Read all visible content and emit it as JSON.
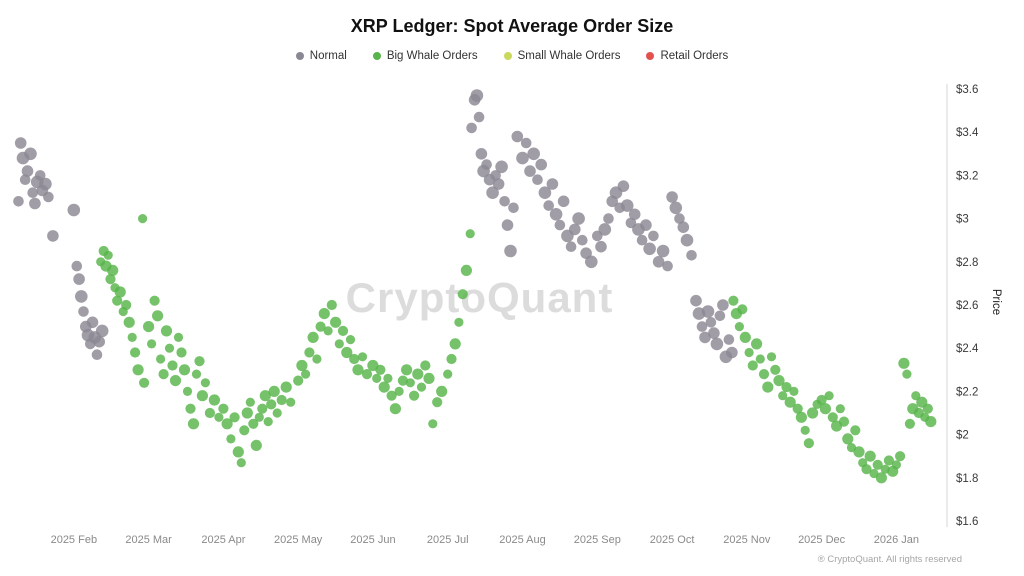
{
  "header": {
    "title": "XRP Ledger: Spot Average Order Size"
  },
  "legend": {
    "items": [
      {
        "label": "Normal",
        "color": "#8b8894"
      },
      {
        "label": "Big Whale Orders",
        "color": "#58b44b"
      },
      {
        "label": "Small Whale Orders",
        "color": "#c9d95b"
      },
      {
        "label": "Retail Orders",
        "color": "#e2514d"
      }
    ]
  },
  "watermark": "CryptoQuant",
  "footer": "® CryptoQuant. All rights reserved",
  "chart_data": {
    "type": "scatter",
    "title": "XRP Ledger: Spot Average Order Size",
    "xlabel": "",
    "ylabel": "Price",
    "ylim": [
      1.6,
      3.6
    ],
    "xlim": [
      0.2,
      12.65
    ],
    "grid": false,
    "legend_position": "top",
    "yticks": [
      {
        "value": 3.6,
        "label": "$3.6"
      },
      {
        "value": 3.4,
        "label": "$3.4"
      },
      {
        "value": 3.2,
        "label": "$3.2"
      },
      {
        "value": 3.0,
        "label": "$3"
      },
      {
        "value": 2.8,
        "label": "$2.8"
      },
      {
        "value": 2.6,
        "label": "$2.6"
      },
      {
        "value": 2.4,
        "label": "$2.4"
      },
      {
        "value": 2.2,
        "label": "$2.2"
      },
      {
        "value": 2.0,
        "label": "$2"
      },
      {
        "value": 1.8,
        "label": "$1.8"
      },
      {
        "value": 1.6,
        "label": "$1.6"
      }
    ],
    "xticks": [
      {
        "value": 1,
        "label": "2025 Feb"
      },
      {
        "value": 2,
        "label": "2025 Mar"
      },
      {
        "value": 3,
        "label": "2025 Apr"
      },
      {
        "value": 4,
        "label": "2025 May"
      },
      {
        "value": 5,
        "label": "2025 Jun"
      },
      {
        "value": 6,
        "label": "2025 Jul"
      },
      {
        "value": 7,
        "label": "2025 Aug"
      },
      {
        "value": 8,
        "label": "2025 Sep"
      },
      {
        "value": 9,
        "label": "2025 Oct"
      },
      {
        "value": 10,
        "label": "2025 Nov"
      },
      {
        "value": 11,
        "label": "2025 Dec"
      },
      {
        "value": 12,
        "label": "2026 Jan"
      }
    ],
    "series": [
      {
        "name": "Normal",
        "color": "#8b8894",
        "points": [
          [
            0.26,
            3.08
          ],
          [
            0.29,
            3.35
          ],
          [
            0.32,
            3.28
          ],
          [
            0.35,
            3.18
          ],
          [
            0.38,
            3.22
          ],
          [
            0.42,
            3.3
          ],
          [
            0.45,
            3.12
          ],
          [
            0.48,
            3.07
          ],
          [
            0.51,
            3.17
          ],
          [
            0.55,
            3.2
          ],
          [
            0.58,
            3.13
          ],
          [
            0.62,
            3.16
          ],
          [
            0.66,
            3.1
          ],
          [
            0.72,
            2.92
          ],
          [
            1.0,
            3.04
          ],
          [
            1.04,
            2.78
          ],
          [
            1.07,
            2.72
          ],
          [
            1.1,
            2.64
          ],
          [
            1.13,
            2.57
          ],
          [
            1.16,
            2.5
          ],
          [
            1.19,
            2.46
          ],
          [
            1.22,
            2.42
          ],
          [
            1.25,
            2.52
          ],
          [
            1.28,
            2.45
          ],
          [
            1.31,
            2.37
          ],
          [
            1.34,
            2.43
          ],
          [
            1.38,
            2.48
          ],
          [
            6.32,
            3.42
          ],
          [
            6.36,
            3.55
          ],
          [
            6.39,
            3.57
          ],
          [
            6.42,
            3.47
          ],
          [
            6.45,
            3.3
          ],
          [
            6.48,
            3.22
          ],
          [
            6.52,
            3.25
          ],
          [
            6.56,
            3.18
          ],
          [
            6.6,
            3.12
          ],
          [
            6.64,
            3.2
          ],
          [
            6.68,
            3.16
          ],
          [
            6.72,
            3.24
          ],
          [
            6.76,
            3.08
          ],
          [
            6.8,
            2.97
          ],
          [
            6.84,
            2.85
          ],
          [
            6.88,
            3.05
          ],
          [
            6.93,
            3.38
          ],
          [
            7.0,
            3.28
          ],
          [
            7.05,
            3.35
          ],
          [
            7.1,
            3.22
          ],
          [
            7.15,
            3.3
          ],
          [
            7.2,
            3.18
          ],
          [
            7.25,
            3.25
          ],
          [
            7.3,
            3.12
          ],
          [
            7.35,
            3.06
          ],
          [
            7.4,
            3.16
          ],
          [
            7.45,
            3.02
          ],
          [
            7.5,
            2.97
          ],
          [
            7.55,
            3.08
          ],
          [
            7.6,
            2.92
          ],
          [
            7.65,
            2.87
          ],
          [
            7.7,
            2.95
          ],
          [
            7.75,
            3.0
          ],
          [
            7.8,
            2.9
          ],
          [
            7.85,
            2.84
          ],
          [
            7.92,
            2.8
          ],
          [
            8.0,
            2.92
          ],
          [
            8.05,
            2.87
          ],
          [
            8.1,
            2.95
          ],
          [
            8.15,
            3.0
          ],
          [
            8.2,
            3.08
          ],
          [
            8.25,
            3.12
          ],
          [
            8.3,
            3.05
          ],
          [
            8.35,
            3.15
          ],
          [
            8.4,
            3.06
          ],
          [
            8.45,
            2.98
          ],
          [
            8.5,
            3.02
          ],
          [
            8.55,
            2.95
          ],
          [
            8.6,
            2.9
          ],
          [
            8.65,
            2.97
          ],
          [
            8.7,
            2.86
          ],
          [
            8.75,
            2.92
          ],
          [
            8.82,
            2.8
          ],
          [
            8.88,
            2.85
          ],
          [
            8.94,
            2.78
          ],
          [
            9.0,
            3.1
          ],
          [
            9.05,
            3.05
          ],
          [
            9.1,
            3.0
          ],
          [
            9.15,
            2.96
          ],
          [
            9.2,
            2.9
          ],
          [
            9.26,
            2.83
          ],
          [
            9.32,
            2.62
          ],
          [
            9.36,
            2.56
          ],
          [
            9.4,
            2.5
          ],
          [
            9.44,
            2.45
          ],
          [
            9.48,
            2.57
          ],
          [
            9.52,
            2.52
          ],
          [
            9.56,
            2.47
          ],
          [
            9.6,
            2.42
          ],
          [
            9.64,
            2.55
          ],
          [
            9.68,
            2.6
          ],
          [
            9.72,
            2.36
          ],
          [
            9.76,
            2.44
          ],
          [
            9.8,
            2.38
          ]
        ]
      },
      {
        "name": "Big Whale Orders",
        "color": "#58b44b",
        "points": [
          [
            1.36,
            2.8
          ],
          [
            1.4,
            2.85
          ],
          [
            1.43,
            2.78
          ],
          [
            1.46,
            2.83
          ],
          [
            1.49,
            2.72
          ],
          [
            1.52,
            2.76
          ],
          [
            1.55,
            2.68
          ],
          [
            1.58,
            2.62
          ],
          [
            1.62,
            2.66
          ],
          [
            1.66,
            2.57
          ],
          [
            1.7,
            2.6
          ],
          [
            1.74,
            2.52
          ],
          [
            1.78,
            2.45
          ],
          [
            1.82,
            2.38
          ],
          [
            1.86,
            2.3
          ],
          [
            1.92,
            3.0
          ],
          [
            1.94,
            2.24
          ],
          [
            2.0,
            2.5
          ],
          [
            2.04,
            2.42
          ],
          [
            2.08,
            2.62
          ],
          [
            2.12,
            2.55
          ],
          [
            2.16,
            2.35
          ],
          [
            2.2,
            2.28
          ],
          [
            2.24,
            2.48
          ],
          [
            2.28,
            2.4
          ],
          [
            2.32,
            2.32
          ],
          [
            2.36,
            2.25
          ],
          [
            2.4,
            2.45
          ],
          [
            2.44,
            2.38
          ],
          [
            2.48,
            2.3
          ],
          [
            2.52,
            2.2
          ],
          [
            2.56,
            2.12
          ],
          [
            2.6,
            2.05
          ],
          [
            2.64,
            2.28
          ],
          [
            2.68,
            2.34
          ],
          [
            2.72,
            2.18
          ],
          [
            2.76,
            2.24
          ],
          [
            2.82,
            2.1
          ],
          [
            2.88,
            2.16
          ],
          [
            2.94,
            2.08
          ],
          [
            3.0,
            2.12
          ],
          [
            3.05,
            2.05
          ],
          [
            3.1,
            1.98
          ],
          [
            3.15,
            2.08
          ],
          [
            3.2,
            1.92
          ],
          [
            3.24,
            1.87
          ],
          [
            3.28,
            2.02
          ],
          [
            3.32,
            2.1
          ],
          [
            3.36,
            2.15
          ],
          [
            3.4,
            2.05
          ],
          [
            3.44,
            1.95
          ],
          [
            3.48,
            2.08
          ],
          [
            3.52,
            2.12
          ],
          [
            3.56,
            2.18
          ],
          [
            3.6,
            2.06
          ],
          [
            3.64,
            2.14
          ],
          [
            3.68,
            2.2
          ],
          [
            3.72,
            2.1
          ],
          [
            3.78,
            2.16
          ],
          [
            3.84,
            2.22
          ],
          [
            3.9,
            2.15
          ],
          [
            4.0,
            2.25
          ],
          [
            4.05,
            2.32
          ],
          [
            4.1,
            2.28
          ],
          [
            4.15,
            2.38
          ],
          [
            4.2,
            2.45
          ],
          [
            4.25,
            2.35
          ],
          [
            4.3,
            2.5
          ],
          [
            4.35,
            2.56
          ],
          [
            4.4,
            2.48
          ],
          [
            4.45,
            2.6
          ],
          [
            4.5,
            2.52
          ],
          [
            4.55,
            2.42
          ],
          [
            4.6,
            2.48
          ],
          [
            4.65,
            2.38
          ],
          [
            4.7,
            2.44
          ],
          [
            4.75,
            2.35
          ],
          [
            4.8,
            2.3
          ],
          [
            4.86,
            2.36
          ],
          [
            4.92,
            2.28
          ],
          [
            5.0,
            2.32
          ],
          [
            5.05,
            2.26
          ],
          [
            5.1,
            2.3
          ],
          [
            5.15,
            2.22
          ],
          [
            5.2,
            2.26
          ],
          [
            5.25,
            2.18
          ],
          [
            5.3,
            2.12
          ],
          [
            5.35,
            2.2
          ],
          [
            5.4,
            2.25
          ],
          [
            5.45,
            2.3
          ],
          [
            5.5,
            2.24
          ],
          [
            5.55,
            2.18
          ],
          [
            5.6,
            2.28
          ],
          [
            5.65,
            2.22
          ],
          [
            5.7,
            2.32
          ],
          [
            5.75,
            2.26
          ],
          [
            5.8,
            2.05
          ],
          [
            5.86,
            2.15
          ],
          [
            5.92,
            2.2
          ],
          [
            6.0,
            2.28
          ],
          [
            6.05,
            2.35
          ],
          [
            6.1,
            2.42
          ],
          [
            6.15,
            2.52
          ],
          [
            6.2,
            2.65
          ],
          [
            6.25,
            2.76
          ],
          [
            6.3,
            2.93
          ],
          [
            9.82,
            2.62
          ],
          [
            9.86,
            2.56
          ],
          [
            9.9,
            2.5
          ],
          [
            9.94,
            2.58
          ],
          [
            9.98,
            2.45
          ],
          [
            10.03,
            2.38
          ],
          [
            10.08,
            2.32
          ],
          [
            10.13,
            2.42
          ],
          [
            10.18,
            2.35
          ],
          [
            10.23,
            2.28
          ],
          [
            10.28,
            2.22
          ],
          [
            10.33,
            2.36
          ],
          [
            10.38,
            2.3
          ],
          [
            10.43,
            2.25
          ],
          [
            10.48,
            2.18
          ],
          [
            10.53,
            2.22
          ],
          [
            10.58,
            2.15
          ],
          [
            10.63,
            2.2
          ],
          [
            10.68,
            2.12
          ],
          [
            10.73,
            2.08
          ],
          [
            10.78,
            2.02
          ],
          [
            10.83,
            1.96
          ],
          [
            10.88,
            2.1
          ],
          [
            10.94,
            2.14
          ],
          [
            11.0,
            2.16
          ],
          [
            11.05,
            2.12
          ],
          [
            11.1,
            2.18
          ],
          [
            11.15,
            2.08
          ],
          [
            11.2,
            2.04
          ],
          [
            11.25,
            2.12
          ],
          [
            11.3,
            2.06
          ],
          [
            11.35,
            1.98
          ],
          [
            11.4,
            1.94
          ],
          [
            11.45,
            2.02
          ],
          [
            11.5,
            1.92
          ],
          [
            11.55,
            1.87
          ],
          [
            11.6,
            1.84
          ],
          [
            11.65,
            1.9
          ],
          [
            11.7,
            1.82
          ],
          [
            11.75,
            1.86
          ],
          [
            11.8,
            1.8
          ],
          [
            11.85,
            1.84
          ],
          [
            11.9,
            1.88
          ],
          [
            11.95,
            1.83
          ],
          [
            12.0,
            1.86
          ],
          [
            12.05,
            1.9
          ],
          [
            12.1,
            2.33
          ],
          [
            12.14,
            2.28
          ],
          [
            12.18,
            2.05
          ],
          [
            12.22,
            2.12
          ],
          [
            12.26,
            2.18
          ],
          [
            12.3,
            2.1
          ],
          [
            12.34,
            2.15
          ],
          [
            12.38,
            2.08
          ],
          [
            12.42,
            2.12
          ],
          [
            12.46,
            2.06
          ]
        ]
      },
      {
        "name": "Small Whale Orders",
        "color": "#c9d95b",
        "points": []
      },
      {
        "name": "Retail Orders",
        "color": "#e2514d",
        "points": []
      }
    ]
  }
}
